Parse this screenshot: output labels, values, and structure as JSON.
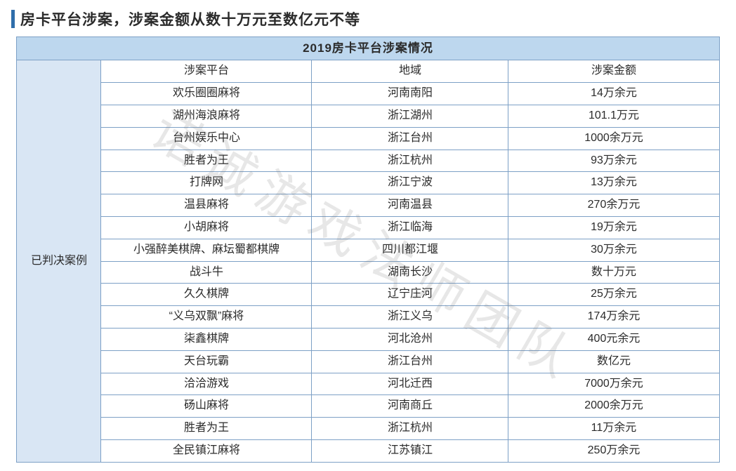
{
  "title": "房卡平台涉案，涉案金额从数十万元至数亿元不等",
  "accent_color": "#2f6eab",
  "table": {
    "header": "2019房卡平台涉案情况",
    "header_bg": "#bdd7ee",
    "group_bg": "#d9e6f4",
    "border_color": "#7da0c6",
    "group_label": "已判决案例",
    "columns": {
      "platform": "涉案平台",
      "region": "地域",
      "amount": "涉案金额"
    },
    "rows": [
      {
        "platform": "欢乐圈圈麻将",
        "region": "河南南阳",
        "amount": "14万余元"
      },
      {
        "platform": "湖州海浪麻将",
        "region": "浙江湖州",
        "amount": "101.1万元"
      },
      {
        "platform": "台州娱乐中心",
        "region": "浙江台州",
        "amount": "1000余万元"
      },
      {
        "platform": "胜者为王",
        "region": "浙江杭州",
        "amount": "93万余元"
      },
      {
        "platform": "打牌网",
        "region": "浙江宁波",
        "amount": "13万余元"
      },
      {
        "platform": "温县麻将",
        "region": "河南温县",
        "amount": "270余万元"
      },
      {
        "platform": "小胡麻将",
        "region": "浙江临海",
        "amount": "19万余元"
      },
      {
        "platform": "小强醉美棋牌、麻坛蜀都棋牌",
        "region": "四川都江堰",
        "amount": "30万余元"
      },
      {
        "platform": "战斗牛",
        "region": "湖南长沙",
        "amount": "数十万元"
      },
      {
        "platform": "久久棋牌",
        "region": "辽宁庄河",
        "amount": "25万余元"
      },
      {
        "platform": "“义乌双飘”麻将",
        "region": "浙江义乌",
        "amount": "174万余元"
      },
      {
        "platform": "柒鑫棋牌",
        "region": "河北沧州",
        "amount": "400元余元"
      },
      {
        "platform": "天台玩霸",
        "region": "浙江台州",
        "amount": "数亿元"
      },
      {
        "platform": "洽洽游戏",
        "region": "河北迁西",
        "amount": "7000万余元"
      },
      {
        "platform": "砀山麻将",
        "region": "河南商丘",
        "amount": "2000余万元"
      },
      {
        "platform": "胜者为王",
        "region": "浙江杭州",
        "amount": "11万余元"
      },
      {
        "platform": "全民镇江麻将",
        "region": "江苏镇江",
        "amount": "250万余元"
      }
    ]
  },
  "watermark": {
    "text": "诺诚游戏法师团队",
    "color": "rgba(120,120,120,0.18)"
  }
}
